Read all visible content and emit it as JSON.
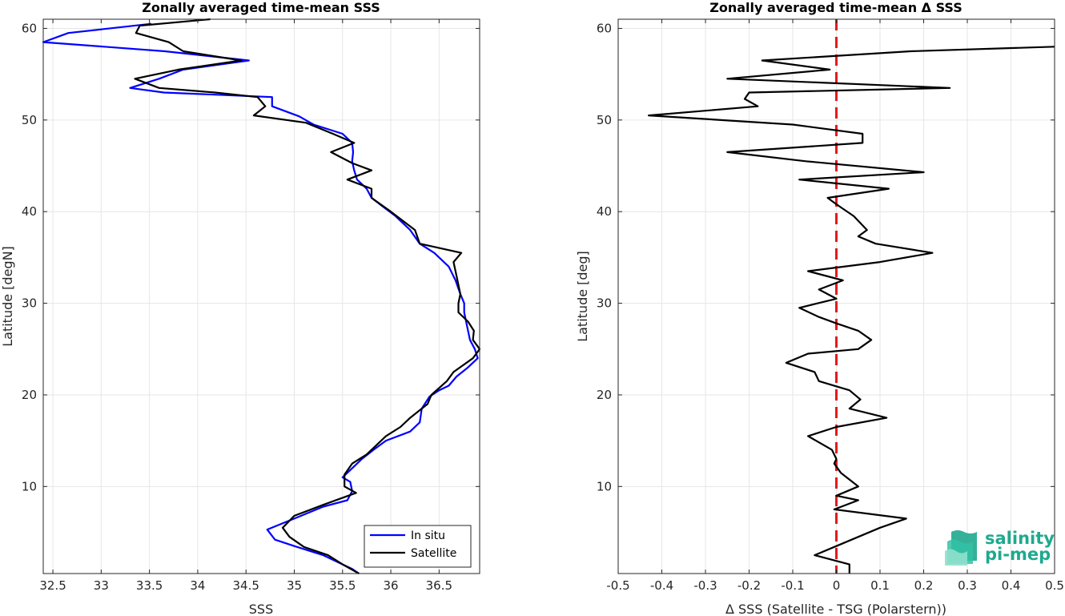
{
  "colors": {
    "insitu": "#0000ff",
    "satellite": "#000000",
    "zero_line": "#e41a1c",
    "logo": "#1fa98e"
  },
  "logo": {
    "line1": "salinity",
    "line2": "pi-mep",
    "icon": "salinity-waves-logo"
  },
  "chart_data": [
    {
      "type": "line",
      "title": "Zonally averaged time-mean SSS",
      "xlabel": "SSS",
      "ylabel": "Latitude [degN]",
      "xlim": [
        32.4,
        36.92
      ],
      "ylim": [
        0.5,
        61
      ],
      "xticks": [
        "32.5",
        "33",
        "33.5",
        "34",
        "34.5",
        "35",
        "35.5",
        "36",
        "36.5"
      ],
      "xtick_values": [
        32.5,
        33,
        33.5,
        34,
        34.5,
        35,
        35.5,
        36,
        36.5
      ],
      "yticks": [
        "10",
        "20",
        "30",
        "40",
        "50",
        "60"
      ],
      "ytick_values": [
        10,
        20,
        30,
        40,
        50,
        60
      ],
      "grid": true,
      "legend": {
        "position": "bottom-right",
        "entries": [
          "In situ",
          "Satellite"
        ]
      },
      "series": [
        {
          "name": "In situ",
          "color": "#0000ff",
          "points": [
            [
              33.52,
              60.5
            ],
            [
              32.66,
              59.5
            ],
            [
              32.4,
              58.5
            ],
            [
              33.66,
              57.5
            ],
            [
              34.53,
              56.5
            ],
            [
              33.85,
              55.5
            ],
            [
              33.6,
              54.5
            ],
            [
              33.3,
              53.5
            ],
            [
              33.65,
              53.0
            ],
            [
              34.77,
              52.5
            ],
            [
              34.77,
              51.5
            ],
            [
              35.05,
              50.4
            ],
            [
              35.2,
              49.5
            ],
            [
              35.5,
              48.5
            ],
            [
              35.6,
              47.5
            ],
            [
              35.61,
              46.5
            ],
            [
              35.6,
              45.5
            ],
            [
              35.62,
              44.5
            ],
            [
              35.65,
              43.5
            ],
            [
              35.75,
              42.5
            ],
            [
              35.8,
              41.5
            ],
            [
              35.9,
              40.7
            ],
            [
              36.05,
              39.5
            ],
            [
              36.2,
              38.0
            ],
            [
              36.3,
              36.5
            ],
            [
              36.45,
              35.5
            ],
            [
              36.6,
              34.0
            ],
            [
              36.67,
              32.5
            ],
            [
              36.72,
              31.0
            ],
            [
              36.76,
              30.0
            ],
            [
              36.76,
              29.0
            ],
            [
              36.78,
              28.0
            ],
            [
              36.8,
              27.0
            ],
            [
              36.82,
              26.0
            ],
            [
              36.87,
              25.0
            ],
            [
              36.9,
              24.0
            ],
            [
              36.8,
              23.0
            ],
            [
              36.68,
              22.0
            ],
            [
              36.6,
              21.0
            ],
            [
              36.5,
              20.5
            ],
            [
              36.4,
              19.8
            ],
            [
              36.32,
              18.5
            ],
            [
              36.3,
              17.0
            ],
            [
              36.2,
              16.0
            ],
            [
              35.95,
              15.0
            ],
            [
              35.82,
              14.0
            ],
            [
              35.7,
              13.0
            ],
            [
              35.62,
              12.2
            ],
            [
              35.5,
              11.0
            ],
            [
              35.58,
              10.5
            ],
            [
              35.6,
              9.5
            ],
            [
              35.55,
              8.5
            ],
            [
              35.3,
              7.8
            ],
            [
              35.0,
              6.5
            ],
            [
              34.72,
              5.3
            ],
            [
              34.8,
              4.2
            ],
            [
              35.0,
              3.5
            ],
            [
              35.3,
              2.5
            ],
            [
              35.6,
              1.0
            ],
            [
              35.67,
              0.5
            ]
          ]
        },
        {
          "name": "Satellite",
          "color": "#000000",
          "points": [
            [
              34.13,
              61.0
            ],
            [
              33.4,
              60.3
            ],
            [
              33.36,
              59.5
            ],
            [
              33.7,
              58.5
            ],
            [
              33.85,
              57.5
            ],
            [
              34.45,
              56.5
            ],
            [
              33.8,
              55.5
            ],
            [
              33.35,
              54.5
            ],
            [
              33.6,
              53.5
            ],
            [
              34.18,
              53.0
            ],
            [
              34.62,
              52.5
            ],
            [
              34.7,
              51.5
            ],
            [
              34.58,
              50.5
            ],
            [
              35.12,
              49.7
            ],
            [
              35.4,
              48.5
            ],
            [
              35.62,
              47.5
            ],
            [
              35.38,
              46.5
            ],
            [
              35.6,
              45.3
            ],
            [
              35.8,
              44.5
            ],
            [
              35.55,
              43.5
            ],
            [
              35.8,
              42.5
            ],
            [
              35.8,
              41.5
            ],
            [
              36.0,
              40.0
            ],
            [
              36.25,
              38.0
            ],
            [
              36.3,
              36.5
            ],
            [
              36.73,
              35.5
            ],
            [
              36.65,
              34.5
            ],
            [
              36.68,
              33.0
            ],
            [
              36.72,
              31.0
            ],
            [
              36.7,
              30.0
            ],
            [
              36.7,
              29.0
            ],
            [
              36.8,
              28.0
            ],
            [
              36.86,
              27.0
            ],
            [
              36.85,
              26.0
            ],
            [
              36.92,
              25.0
            ],
            [
              36.85,
              24.0
            ],
            [
              36.65,
              22.5
            ],
            [
              36.58,
              21.5
            ],
            [
              36.42,
              20.0
            ],
            [
              36.38,
              19.0
            ],
            [
              36.2,
              17.5
            ],
            [
              36.1,
              16.5
            ],
            [
              35.95,
              15.5
            ],
            [
              35.75,
              13.5
            ],
            [
              35.6,
              12.5
            ],
            [
              35.52,
              11.3
            ],
            [
              35.52,
              10.0
            ],
            [
              35.64,
              9.3
            ],
            [
              35.3,
              8.0
            ],
            [
              35.0,
              6.8
            ],
            [
              34.88,
              5.5
            ],
            [
              34.95,
              4.5
            ],
            [
              35.1,
              3.4
            ],
            [
              35.35,
              2.5
            ],
            [
              35.5,
              1.5
            ],
            [
              35.67,
              0.5
            ]
          ]
        }
      ]
    },
    {
      "type": "line",
      "title": "Zonally averaged time-mean Δ SSS",
      "xlabel": "Δ SSS (Satellite - TSG (Polarstern))",
      "ylabel": "Latitude [deg]",
      "xlim": [
        -0.5,
        0.5
      ],
      "ylim": [
        0.5,
        61
      ],
      "xticks": [
        "-0.5",
        "-0.4",
        "-0.3",
        "-0.2",
        "-0.1",
        "0",
        "0.1",
        "0.2",
        "0.3",
        "0.4",
        "0.5"
      ],
      "xtick_values": [
        -0.5,
        -0.4,
        -0.3,
        -0.2,
        -0.1,
        0,
        0.1,
        0.2,
        0.3,
        0.4,
        0.5
      ],
      "yticks": [
        "10",
        "20",
        "30",
        "40",
        "50",
        "60"
      ],
      "ytick_values": [
        10,
        20,
        30,
        40,
        50,
        60
      ],
      "grid": true,
      "reference_line": {
        "x": 0,
        "style": "dashed",
        "color": "#e41a1c"
      },
      "series": [
        {
          "color": "#000000",
          "points": [
            [
              0.5,
              58.0
            ],
            [
              0.17,
              57.5
            ],
            [
              -0.17,
              56.5
            ],
            [
              -0.015,
              55.5
            ],
            [
              -0.25,
              54.5
            ],
            [
              0.26,
              53.5
            ],
            [
              -0.2,
              53.0
            ],
            [
              -0.21,
              52.3
            ],
            [
              -0.18,
              51.5
            ],
            [
              -0.43,
              50.5
            ],
            [
              -0.1,
              49.5
            ],
            [
              0.06,
              48.5
            ],
            [
              0.06,
              47.5
            ],
            [
              -0.25,
              46.5
            ],
            [
              -0.07,
              45.5
            ],
            [
              0.2,
              44.3
            ],
            [
              -0.085,
              43.5
            ],
            [
              0.12,
              42.5
            ],
            [
              -0.02,
              41.5
            ],
            [
              0.0,
              40.8
            ],
            [
              0.04,
              39.5
            ],
            [
              0.07,
              38.0
            ],
            [
              0.05,
              37.3
            ],
            [
              0.09,
              36.5
            ],
            [
              0.22,
              35.5
            ],
            [
              0.1,
              34.5
            ],
            [
              -0.065,
              33.5
            ],
            [
              0.015,
              32.5
            ],
            [
              -0.04,
              31.5
            ],
            [
              0.0,
              30.5
            ],
            [
              -0.085,
              29.5
            ],
            [
              -0.04,
              28.5
            ],
            [
              0.0,
              27.8
            ],
            [
              0.05,
              27.0
            ],
            [
              0.08,
              26.0
            ],
            [
              0.05,
              25.0
            ],
            [
              -0.065,
              24.5
            ],
            [
              -0.115,
              23.5
            ],
            [
              -0.05,
              22.5
            ],
            [
              -0.04,
              21.5
            ],
            [
              0.03,
              20.5
            ],
            [
              0.055,
              19.5
            ],
            [
              0.03,
              18.5
            ],
            [
              0.115,
              17.5
            ],
            [
              0.0,
              16.5
            ],
            [
              -0.065,
              15.5
            ],
            [
              -0.01,
              14.0
            ],
            [
              0.0,
              13.0
            ],
            [
              -0.005,
              12.5
            ],
            [
              0.01,
              11.5
            ],
            [
              0.05,
              10.0
            ],
            [
              0.0,
              9.0
            ],
            [
              0.05,
              8.5
            ],
            [
              -0.005,
              7.5
            ],
            [
              0.16,
              6.5
            ],
            [
              0.1,
              5.5
            ],
            [
              0.0,
              3.5
            ],
            [
              -0.05,
              2.5
            ],
            [
              0.03,
              1.5
            ],
            [
              0.03,
              0.5
            ]
          ]
        }
      ]
    }
  ]
}
